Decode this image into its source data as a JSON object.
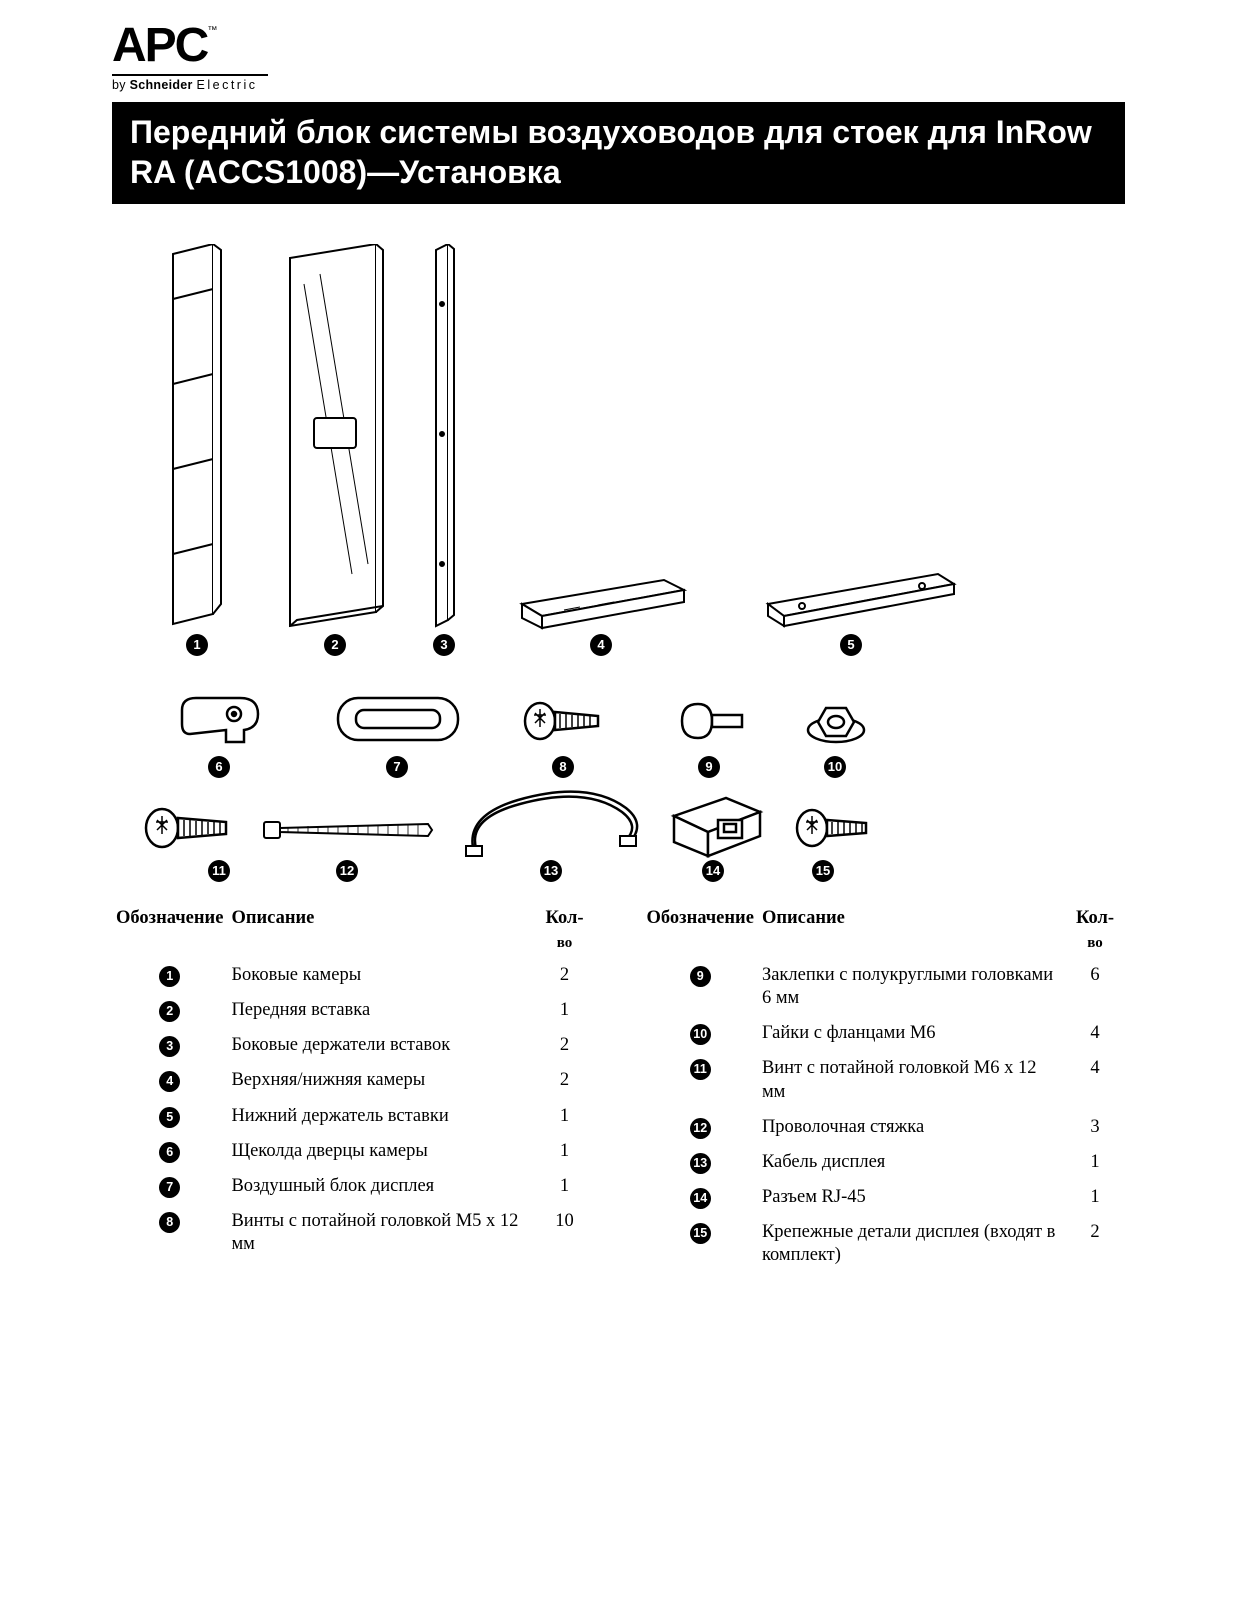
{
  "logo": {
    "brand": "APC",
    "tm": "™",
    "byline_prefix": "by ",
    "byline_bold": "Schneider ",
    "byline_spaced": "Electric"
  },
  "title": "Передний блок системы воздуховодов для стоек для InRow RA (ACCS1008)—Установка",
  "headers": {
    "item": "Обозначение",
    "desc": "Описание",
    "qty": "Кол-",
    "qty_sub": "во"
  },
  "parts_left": [
    {
      "n": "1",
      "desc": "Боковые камеры",
      "qty": "2"
    },
    {
      "n": "2",
      "desc": "Передняя вставка",
      "qty": "1"
    },
    {
      "n": "3",
      "desc": "Боковые держатели вставок",
      "qty": "2"
    },
    {
      "n": "4",
      "desc": "Верхняя/нижняя камеры",
      "qty": "2"
    },
    {
      "n": "5",
      "desc": "Нижний держатель вставки",
      "qty": "1"
    },
    {
      "n": "6",
      "desc": "Щеколда дверцы камеры",
      "qty": "1"
    },
    {
      "n": "7",
      "desc": "Воздушный блок дисплея",
      "qty": "1"
    },
    {
      "n": "8",
      "desc": "Винты с потайной головкой M5 x 12 мм",
      "qty": "10"
    }
  ],
  "parts_right": [
    {
      "n": "9",
      "desc": "Заклепки с полукруглыми головками 6 мм",
      "qty": "6"
    },
    {
      "n": "10",
      "desc": "Гайки с фланцами M6",
      "qty": "4"
    },
    {
      "n": "11",
      "desc": "Винт с потайной головкой M6 x 12 мм",
      "qty": "4"
    },
    {
      "n": "12",
      "desc": "Проволочная стяжка",
      "qty": "3"
    },
    {
      "n": "13",
      "desc": "Кабель дисплея",
      "qty": "1"
    },
    {
      "n": "14",
      "desc": "Разъем RJ-45",
      "qty": "1"
    },
    {
      "n": "15",
      "desc": "Крепежные детали дисплея (входят в комплект)",
      "qty": "2"
    }
  ],
  "callouts_row1": [
    "1",
    "2",
    "3",
    "4",
    "5"
  ],
  "callouts_row2": [
    "6",
    "7",
    "8",
    "9",
    "10"
  ],
  "callouts_row3": [
    "11",
    "12",
    "13",
    "14",
    "15"
  ]
}
